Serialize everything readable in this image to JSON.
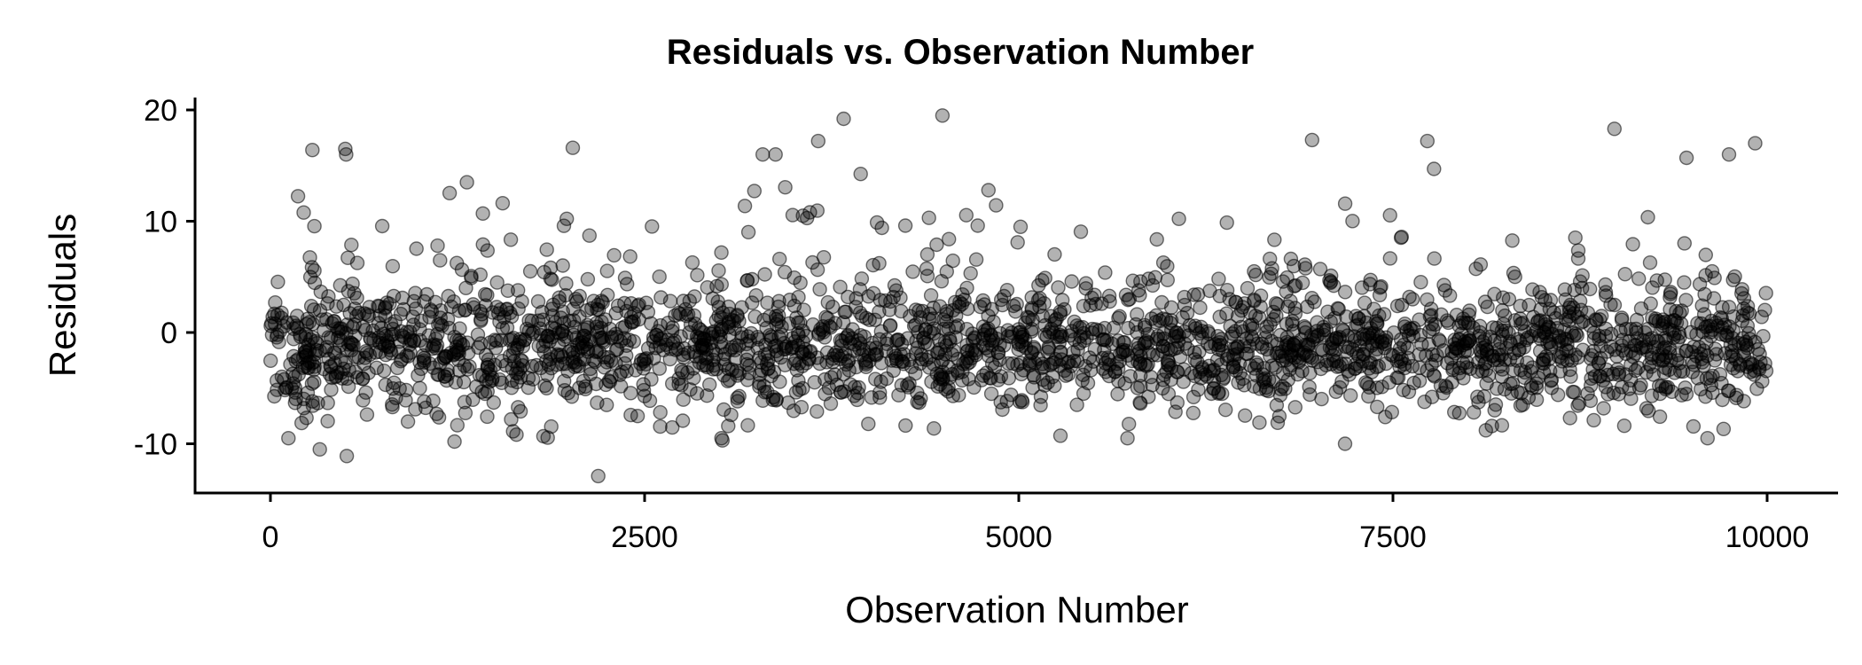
{
  "chart_data": {
    "type": "scatter",
    "title": "Residuals vs. Observation Number",
    "xlabel": "Observation Number",
    "ylabel": "Residuals",
    "xlim": [
      -500,
      10500
    ],
    "ylim": [
      -14.5,
      21
    ],
    "x_ticks": [
      0,
      2500,
      5000,
      7500,
      10000
    ],
    "x_tick_labels": [
      "0",
      "2500",
      "5000",
      "7500",
      "10000"
    ],
    "y_ticks": [
      -10,
      0,
      10,
      20
    ],
    "y_tick_labels": [
      "-10",
      "0",
      "10",
      "20"
    ],
    "grid": false,
    "legend": "none",
    "n_points": 10000,
    "point_color": "#000000",
    "point_alpha": 0.3,
    "series": [
      {
        "x_range": [
          1,
          10000
        ],
        "distribution": "dense band between about -8 and 5, centered near -1.5, sparse points up to about 19.5, minimum about -13",
        "notable_points": [
          {
            "x": 2190,
            "y": -12.9
          },
          {
            "x": 510,
            "y": -11.1
          },
          {
            "x": 330,
            "y": -10.5
          },
          {
            "x": 7180,
            "y": -10.0
          },
          {
            "x": 1230,
            "y": -9.8
          },
          {
            "x": 3020,
            "y": -9.7
          },
          {
            "x": 4490,
            "y": 19.5
          },
          {
            "x": 3830,
            "y": 19.2
          },
          {
            "x": 8980,
            "y": 18.3
          },
          {
            "x": 6960,
            "y": 17.3
          },
          {
            "x": 3660,
            "y": 17.2
          },
          {
            "x": 9920,
            "y": 17.0
          },
          {
            "x": 7730,
            "y": 17.2
          },
          {
            "x": 2020,
            "y": 16.6
          },
          {
            "x": 500,
            "y": 16.5
          },
          {
            "x": 280,
            "y": 16.4
          }
        ]
      }
    ]
  }
}
